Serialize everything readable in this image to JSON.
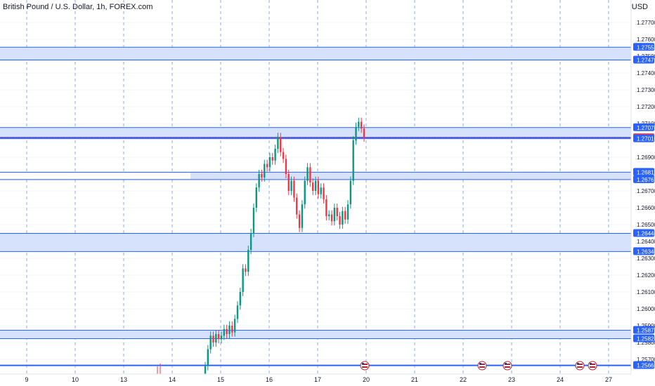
{
  "header": {
    "symbol_title": "British Pound / U.S. Dollar, 1h, FOREX.com",
    "currency": "USD"
  },
  "colors": {
    "up": "#089981",
    "down": "#f23645",
    "zone_fill": "#d6e2fb",
    "zone_line": "#2962ff",
    "grid": "#f0f3fa",
    "session": "#8fa8e8",
    "label_bg": "#2962ff",
    "price_bg": "#f23645"
  },
  "price_scale": {
    "ticks": [
      "1.27700",
      "1.27600",
      "1.27500",
      "1.27400",
      "1.27300",
      "1.27200",
      "1.27100",
      "1.26900",
      "1.26700",
      "1.26600",
      "1.26500",
      "1.26400",
      "1.26300",
      "1.26200",
      "1.26100",
      "1.26000",
      "1.25900",
      "1.25800",
      "1.25700"
    ],
    "labels": [
      "1.27553",
      "1.27477",
      "1.27076",
      "1.27016",
      "1.27010",
      "1.26811",
      "1.26767",
      "1.26448",
      "1.26340",
      "1.25873",
      "1.25823",
      "1.25664"
    ],
    "current_price": "1.27016"
  },
  "time_axis": {
    "labels": [
      "9",
      "10",
      "13",
      "14",
      "15",
      "16",
      "17",
      "20",
      "21",
      "22",
      "23",
      "24",
      "27"
    ]
  },
  "event_icons": [
    {
      "x": 519,
      "kind": "us-flag-icon"
    },
    {
      "x": 686,
      "kind": "us-flag-icon"
    },
    {
      "x": 722,
      "kind": "us-flag-icon"
    },
    {
      "x": 825,
      "kind": "us-flag-icon"
    },
    {
      "x": 843,
      "kind": "us-flag-icon"
    }
  ],
  "chart_data": {
    "type": "candlestick",
    "title": "British Pound / U.S. Dollar, 1h, FOREX.com",
    "y_unit": "USD",
    "ylim": [
      1.2563,
      1.2779
    ],
    "x_categories": [
      "9",
      "10",
      "13",
      "14",
      "15",
      "16",
      "17",
      "20",
      "21",
      "22",
      "23",
      "24",
      "27"
    ],
    "zones": [
      {
        "top": 1.27553,
        "bottom": 1.27477
      },
      {
        "top": 1.27076,
        "bottom": 1.2701
      },
      {
        "top": 1.26811,
        "bottom": 1.26767
      },
      {
        "top": 1.26448,
        "bottom": 1.2634
      },
      {
        "top": 1.25873,
        "bottom": 1.25823
      }
    ],
    "levels": [
      1.27016,
      1.25664
    ],
    "current_price": 1.27016,
    "price_path": [
      [
        1.255,
        1.2566
      ],
      [
        1.2566,
        1.2576
      ],
      [
        1.2576,
        1.2584
      ],
      [
        1.2584,
        1.258
      ],
      [
        1.258,
        1.2585
      ],
      [
        1.2585,
        1.2582
      ],
      [
        1.2582,
        1.2584
      ],
      [
        1.2584,
        1.2588
      ],
      [
        1.2588,
        1.2585
      ],
      [
        1.2585,
        1.259
      ],
      [
        1.259,
        1.2586
      ],
      [
        1.2586,
        1.2594
      ],
      [
        1.2594,
        1.2602
      ],
      [
        1.2602,
        1.261
      ],
      [
        1.261,
        1.2624
      ],
      [
        1.2624,
        1.2622
      ],
      [
        1.2622,
        1.2635
      ],
      [
        1.2635,
        1.2645
      ],
      [
        1.2645,
        1.266
      ],
      [
        1.266,
        1.2672
      ],
      [
        1.2672,
        1.268
      ],
      [
        1.268,
        1.2678
      ],
      [
        1.2678,
        1.2686
      ],
      [
        1.2686,
        1.2684
      ],
      [
        1.2684,
        1.269
      ],
      [
        1.269,
        1.2688
      ],
      [
        1.2688,
        1.2695
      ],
      [
        1.2695,
        1.2702
      ],
      [
        1.2702,
        1.2693
      ],
      [
        1.2693,
        1.2689
      ],
      [
        1.2689,
        1.268
      ],
      [
        1.268,
        1.267
      ],
      [
        1.267,
        1.2676
      ],
      [
        1.2676,
        1.2666
      ],
      [
        1.2666,
        1.2656
      ],
      [
        1.2656,
        1.2648
      ],
      [
        1.2648,
        1.2662
      ],
      [
        1.2662,
        1.2676
      ],
      [
        1.2676,
        1.2684
      ],
      [
        1.2684,
        1.2675
      ],
      [
        1.2675,
        1.267
      ],
      [
        1.267,
        1.2676
      ],
      [
        1.2676,
        1.2668
      ],
      [
        1.2668,
        1.2672
      ],
      [
        1.2672,
        1.2665
      ],
      [
        1.2665,
        1.2655
      ],
      [
        1.2655,
        1.2656
      ],
      [
        1.2656,
        1.2652
      ],
      [
        1.2652,
        1.266
      ],
      [
        1.266,
        1.2655
      ],
      [
        1.2655,
        1.265
      ],
      [
        1.265,
        1.2658
      ],
      [
        1.2658,
        1.2653
      ],
      [
        1.2653,
        1.2662
      ],
      [
        1.2662,
        1.2676
      ],
      [
        1.2676,
        1.27
      ],
      [
        1.27,
        1.2708
      ],
      [
        1.2708,
        1.2711
      ],
      [
        1.2711,
        1.2707
      ],
      [
        1.2707,
        1.27016
      ]
    ]
  }
}
